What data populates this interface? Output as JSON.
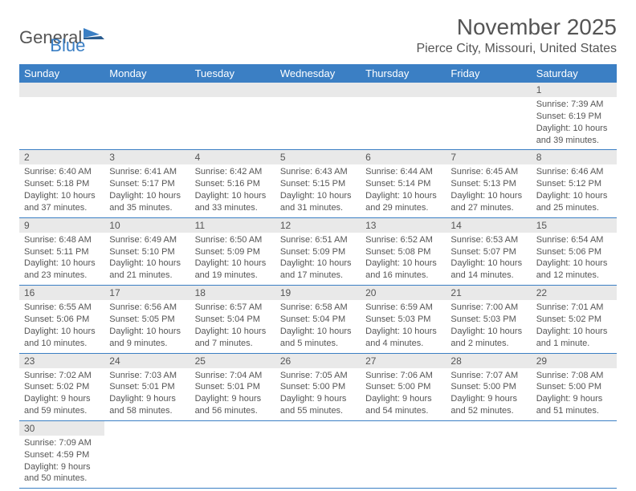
{
  "brand": {
    "part1": "General",
    "part2": "Blue"
  },
  "title": "November 2025",
  "location": "Pierce City, Missouri, United States",
  "colors": {
    "header_bg": "#3b7fc4",
    "header_text": "#ffffff",
    "daynum_bg": "#e9e9e9",
    "cell_border": "#3b7fc4",
    "text": "#555555",
    "background": "#ffffff"
  },
  "typography": {
    "title_fontsize": 28,
    "location_fontsize": 16,
    "weekday_fontsize": 13,
    "daynum_fontsize": 12,
    "body_fontsize": 11
  },
  "weekdays": [
    "Sunday",
    "Monday",
    "Tuesday",
    "Wednesday",
    "Thursday",
    "Friday",
    "Saturday"
  ],
  "weeks": [
    [
      null,
      null,
      null,
      null,
      null,
      null,
      {
        "n": "1",
        "sunrise": "Sunrise: 7:39 AM",
        "sunset": "Sunset: 6:19 PM",
        "daylight": "Daylight: 10 hours and 39 minutes."
      }
    ],
    [
      {
        "n": "2",
        "sunrise": "Sunrise: 6:40 AM",
        "sunset": "Sunset: 5:18 PM",
        "daylight": "Daylight: 10 hours and 37 minutes."
      },
      {
        "n": "3",
        "sunrise": "Sunrise: 6:41 AM",
        "sunset": "Sunset: 5:17 PM",
        "daylight": "Daylight: 10 hours and 35 minutes."
      },
      {
        "n": "4",
        "sunrise": "Sunrise: 6:42 AM",
        "sunset": "Sunset: 5:16 PM",
        "daylight": "Daylight: 10 hours and 33 minutes."
      },
      {
        "n": "5",
        "sunrise": "Sunrise: 6:43 AM",
        "sunset": "Sunset: 5:15 PM",
        "daylight": "Daylight: 10 hours and 31 minutes."
      },
      {
        "n": "6",
        "sunrise": "Sunrise: 6:44 AM",
        "sunset": "Sunset: 5:14 PM",
        "daylight": "Daylight: 10 hours and 29 minutes."
      },
      {
        "n": "7",
        "sunrise": "Sunrise: 6:45 AM",
        "sunset": "Sunset: 5:13 PM",
        "daylight": "Daylight: 10 hours and 27 minutes."
      },
      {
        "n": "8",
        "sunrise": "Sunrise: 6:46 AM",
        "sunset": "Sunset: 5:12 PM",
        "daylight": "Daylight: 10 hours and 25 minutes."
      }
    ],
    [
      {
        "n": "9",
        "sunrise": "Sunrise: 6:48 AM",
        "sunset": "Sunset: 5:11 PM",
        "daylight": "Daylight: 10 hours and 23 minutes."
      },
      {
        "n": "10",
        "sunrise": "Sunrise: 6:49 AM",
        "sunset": "Sunset: 5:10 PM",
        "daylight": "Daylight: 10 hours and 21 minutes."
      },
      {
        "n": "11",
        "sunrise": "Sunrise: 6:50 AM",
        "sunset": "Sunset: 5:09 PM",
        "daylight": "Daylight: 10 hours and 19 minutes."
      },
      {
        "n": "12",
        "sunrise": "Sunrise: 6:51 AM",
        "sunset": "Sunset: 5:09 PM",
        "daylight": "Daylight: 10 hours and 17 minutes."
      },
      {
        "n": "13",
        "sunrise": "Sunrise: 6:52 AM",
        "sunset": "Sunset: 5:08 PM",
        "daylight": "Daylight: 10 hours and 16 minutes."
      },
      {
        "n": "14",
        "sunrise": "Sunrise: 6:53 AM",
        "sunset": "Sunset: 5:07 PM",
        "daylight": "Daylight: 10 hours and 14 minutes."
      },
      {
        "n": "15",
        "sunrise": "Sunrise: 6:54 AM",
        "sunset": "Sunset: 5:06 PM",
        "daylight": "Daylight: 10 hours and 12 minutes."
      }
    ],
    [
      {
        "n": "16",
        "sunrise": "Sunrise: 6:55 AM",
        "sunset": "Sunset: 5:06 PM",
        "daylight": "Daylight: 10 hours and 10 minutes."
      },
      {
        "n": "17",
        "sunrise": "Sunrise: 6:56 AM",
        "sunset": "Sunset: 5:05 PM",
        "daylight": "Daylight: 10 hours and 9 minutes."
      },
      {
        "n": "18",
        "sunrise": "Sunrise: 6:57 AM",
        "sunset": "Sunset: 5:04 PM",
        "daylight": "Daylight: 10 hours and 7 minutes."
      },
      {
        "n": "19",
        "sunrise": "Sunrise: 6:58 AM",
        "sunset": "Sunset: 5:04 PM",
        "daylight": "Daylight: 10 hours and 5 minutes."
      },
      {
        "n": "20",
        "sunrise": "Sunrise: 6:59 AM",
        "sunset": "Sunset: 5:03 PM",
        "daylight": "Daylight: 10 hours and 4 minutes."
      },
      {
        "n": "21",
        "sunrise": "Sunrise: 7:00 AM",
        "sunset": "Sunset: 5:03 PM",
        "daylight": "Daylight: 10 hours and 2 minutes."
      },
      {
        "n": "22",
        "sunrise": "Sunrise: 7:01 AM",
        "sunset": "Sunset: 5:02 PM",
        "daylight": "Daylight: 10 hours and 1 minute."
      }
    ],
    [
      {
        "n": "23",
        "sunrise": "Sunrise: 7:02 AM",
        "sunset": "Sunset: 5:02 PM",
        "daylight": "Daylight: 9 hours and 59 minutes."
      },
      {
        "n": "24",
        "sunrise": "Sunrise: 7:03 AM",
        "sunset": "Sunset: 5:01 PM",
        "daylight": "Daylight: 9 hours and 58 minutes."
      },
      {
        "n": "25",
        "sunrise": "Sunrise: 7:04 AM",
        "sunset": "Sunset: 5:01 PM",
        "daylight": "Daylight: 9 hours and 56 minutes."
      },
      {
        "n": "26",
        "sunrise": "Sunrise: 7:05 AM",
        "sunset": "Sunset: 5:00 PM",
        "daylight": "Daylight: 9 hours and 55 minutes."
      },
      {
        "n": "27",
        "sunrise": "Sunrise: 7:06 AM",
        "sunset": "Sunset: 5:00 PM",
        "daylight": "Daylight: 9 hours and 54 minutes."
      },
      {
        "n": "28",
        "sunrise": "Sunrise: 7:07 AM",
        "sunset": "Sunset: 5:00 PM",
        "daylight": "Daylight: 9 hours and 52 minutes."
      },
      {
        "n": "29",
        "sunrise": "Sunrise: 7:08 AM",
        "sunset": "Sunset: 5:00 PM",
        "daylight": "Daylight: 9 hours and 51 minutes."
      }
    ],
    [
      {
        "n": "30",
        "sunrise": "Sunrise: 7:09 AM",
        "sunset": "Sunset: 4:59 PM",
        "daylight": "Daylight: 9 hours and 50 minutes."
      },
      null,
      null,
      null,
      null,
      null,
      null
    ]
  ]
}
